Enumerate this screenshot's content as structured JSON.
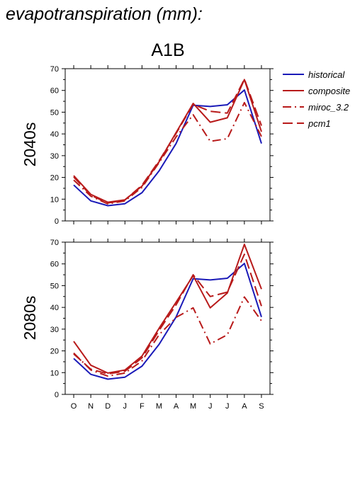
{
  "title": "evapotranspiration (mm):",
  "scenario": "A1B",
  "colors": {
    "historical": "#1a1ab8",
    "model": "#b81a1a"
  },
  "legend": [
    "historical",
    "composite",
    "miroc_3.2",
    "pcm1"
  ],
  "chart_data": [
    {
      "type": "line",
      "row_label": "2040s",
      "categories": [
        "O",
        "N",
        "D",
        "J",
        "F",
        "M",
        "A",
        "M",
        "J",
        "J",
        "A",
        "S"
      ],
      "ylim": [
        0,
        70
      ],
      "yticks": [
        0,
        10,
        20,
        30,
        40,
        50,
        60,
        70
      ],
      "series": [
        {
          "name": "historical",
          "style": "solid",
          "color": "#1a1ab8",
          "values": [
            16.5,
            9.2,
            7.0,
            7.9,
            13.0,
            23.0,
            35.6,
            53.2,
            52.6,
            53.4,
            60.2,
            35.6
          ]
        },
        {
          "name": "composite",
          "style": "solid",
          "color": "#b81a1a",
          "values": [
            20.8,
            12.2,
            8.6,
            9.7,
            16.0,
            27.2,
            40.6,
            54.0,
            45.4,
            47.4,
            65.0,
            41.0
          ]
        },
        {
          "name": "miroc_3.2",
          "style": "dashdot",
          "color": "#b81a1a",
          "values": [
            18.8,
            11.4,
            7.8,
            9.2,
            15.4,
            26.8,
            38.6,
            48.8,
            36.6,
            37.8,
            54.4,
            38.8
          ]
        },
        {
          "name": "pcm1",
          "style": "dashed",
          "color": "#b81a1a",
          "values": [
            20.2,
            11.8,
            8.2,
            9.6,
            16.4,
            27.6,
            40.2,
            53.6,
            50.4,
            49.6,
            65.2,
            43.8
          ]
        }
      ]
    },
    {
      "type": "line",
      "row_label": "2080s",
      "categories": [
        "O",
        "N",
        "D",
        "J",
        "F",
        "M",
        "A",
        "M",
        "J",
        "J",
        "A",
        "S"
      ],
      "ylim": [
        0,
        70
      ],
      "yticks": [
        0,
        10,
        20,
        30,
        40,
        50,
        60,
        70
      ],
      "series": [
        {
          "name": "historical",
          "style": "solid",
          "color": "#1a1ab8",
          "values": [
            16.5,
            9.2,
            7.0,
            7.9,
            13.0,
            23.0,
            35.6,
            53.2,
            52.6,
            53.4,
            60.2,
            35.6
          ]
        },
        {
          "name": "composite",
          "style": "solid",
          "color": "#b81a1a",
          "values": [
            24.4,
            13.4,
            9.8,
            11.2,
            17.6,
            30.4,
            42.4,
            54.6,
            39.8,
            46.6,
            69.0,
            48.4
          ]
        },
        {
          "name": "miroc_3.2",
          "style": "dashdot",
          "color": "#b81a1a",
          "values": [
            19.0,
            11.2,
            8.4,
            9.8,
            15.4,
            27.4,
            35.4,
            39.8,
            23.2,
            27.4,
            44.8,
            33.8
          ]
        },
        {
          "name": "pcm1",
          "style": "dashed",
          "color": "#b81a1a",
          "values": [
            18.6,
            11.6,
            9.4,
            10.6,
            16.8,
            29.4,
            41.2,
            55.0,
            45.0,
            47.0,
            64.4,
            40.6
          ]
        }
      ]
    }
  ]
}
